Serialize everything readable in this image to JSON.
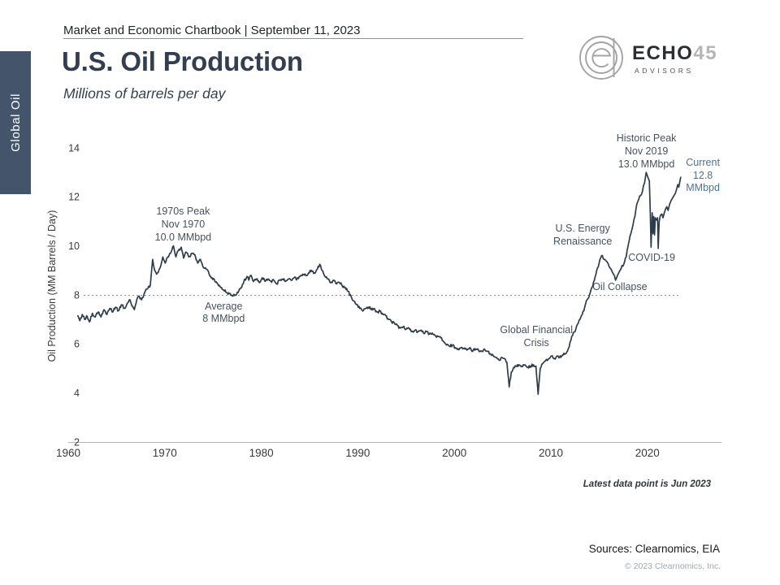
{
  "page": {
    "header": "Market and Economic Chartbook | September 11, 2023",
    "title": "U.S. Oil Production",
    "subtitle": "Millions of barrels per day",
    "sidebar_label": "Global Oil",
    "footnote": "Latest data point is Jun 2023",
    "sources": "Sources: Clearnomics, EIA",
    "copyright": "© 2023 Clearnomics, Inc."
  },
  "logo": {
    "name": "ECHO",
    "number": "45",
    "tagline": "ADVISORS"
  },
  "colors": {
    "accent": "#44546A",
    "line": "#2E3C4C",
    "annotation": "#47525E",
    "current_label": "#4D7394",
    "axis_line": "#B3B3B3",
    "tick_text": "#3A3A3A",
    "dotted_line": "#8694A2"
  },
  "chart_data": {
    "type": "line",
    "title": "U.S. Oil Production",
    "subtitle": "Millions of barrels per day",
    "xlabel": "",
    "ylabel": "Oil Production (MM Barrels / Day)",
    "ylim": [
      2,
      14
    ],
    "xlim": [
      1960,
      2023.6
    ],
    "yticks": [
      2,
      4,
      6,
      8,
      10,
      12,
      14
    ],
    "xticks": [
      1960,
      1970,
      1980,
      1990,
      2000,
      2010,
      2020
    ],
    "grid": false,
    "legend": "none",
    "average_line": {
      "value": 8,
      "from": 1961.6,
      "to": 2023.2
    },
    "noise_amplitude": 0.07,
    "annotations": [
      {
        "id": "1970s-peak",
        "lines": [
          "1970s Peak",
          "Nov 1970",
          "10.0 MMbpd"
        ],
        "year": 1971.9,
        "value": 10.85,
        "style": "default"
      },
      {
        "id": "average",
        "lines": [
          "Average",
          "8 MMbpd"
        ],
        "year": 1976.1,
        "value": 7.25,
        "style": "default"
      },
      {
        "id": "global-financial-crisis",
        "lines": [
          "Global Financial",
          "Crisis"
        ],
        "year": 2008.5,
        "value": 6.27,
        "style": "default"
      },
      {
        "id": "us-energy-renaissance",
        "lines": [
          "U.S. Energy",
          "Renaissance"
        ],
        "year": 2013.3,
        "value": 10.42,
        "style": "default"
      },
      {
        "id": "oil-collapse",
        "lines": [
          "Oil Collapse"
        ],
        "year": 2017.15,
        "value": 8.3,
        "style": "default"
      },
      {
        "id": "covid-19",
        "lines": [
          "COVID-19"
        ],
        "year": 2020.45,
        "value": 9.5,
        "style": "default"
      },
      {
        "id": "historic-peak",
        "lines": [
          "Historic Peak",
          "Nov 2019",
          "13.0 MMbpd"
        ],
        "year": 2019.9,
        "value": 13.82,
        "style": "default"
      },
      {
        "id": "current",
        "lines": [
          "Current",
          "12.8",
          "MMbpd"
        ],
        "year": 2025.75,
        "value": 12.85,
        "style": "accent"
      }
    ],
    "series": [
      {
        "name": "U.S. Oil Production (MM barrels per day)",
        "points": [
          [
            1961.0,
            7.15
          ],
          [
            1961.2,
            6.95
          ],
          [
            1961.45,
            7.2
          ],
          [
            1961.7,
            7.0
          ],
          [
            1961.9,
            7.15
          ],
          [
            1962.2,
            6.9
          ],
          [
            1962.5,
            7.25
          ],
          [
            1962.8,
            7.1
          ],
          [
            1963.1,
            7.3
          ],
          [
            1963.4,
            7.1
          ],
          [
            1963.7,
            7.4
          ],
          [
            1964.0,
            7.2
          ],
          [
            1964.3,
            7.45
          ],
          [
            1964.6,
            7.3
          ],
          [
            1964.9,
            7.5
          ],
          [
            1965.2,
            7.35
          ],
          [
            1965.5,
            7.6
          ],
          [
            1965.8,
            7.45
          ],
          [
            1966.1,
            7.65
          ],
          [
            1966.4,
            7.8
          ],
          [
            1966.6,
            7.55
          ],
          [
            1966.85,
            7.4
          ],
          [
            1967.1,
            7.8
          ],
          [
            1967.35,
            7.95
          ],
          [
            1967.6,
            7.8
          ],
          [
            1967.9,
            8.1
          ],
          [
            1968.2,
            8.25
          ],
          [
            1968.5,
            8.4
          ],
          [
            1968.75,
            9.45
          ],
          [
            1968.95,
            9.0
          ],
          [
            1969.15,
            8.85
          ],
          [
            1969.5,
            9.1
          ],
          [
            1969.8,
            9.55
          ],
          [
            1970.05,
            9.3
          ],
          [
            1970.3,
            9.55
          ],
          [
            1970.6,
            9.7
          ],
          [
            1970.9,
            10.0
          ],
          [
            1971.15,
            9.55
          ],
          [
            1971.4,
            9.8
          ],
          [
            1971.7,
            9.95
          ],
          [
            1971.95,
            9.5
          ],
          [
            1972.2,
            9.75
          ],
          [
            1972.5,
            9.55
          ],
          [
            1972.8,
            9.7
          ],
          [
            1973.1,
            9.65
          ],
          [
            1973.4,
            9.3
          ],
          [
            1973.7,
            9.45
          ],
          [
            1973.95,
            9.15
          ],
          [
            1974.3,
            9.05
          ],
          [
            1974.6,
            8.85
          ],
          [
            1974.9,
            8.7
          ],
          [
            1975.2,
            8.55
          ],
          [
            1975.5,
            8.45
          ],
          [
            1975.8,
            8.3
          ],
          [
            1976.1,
            8.2
          ],
          [
            1976.4,
            8.1
          ],
          [
            1976.7,
            8.05
          ],
          [
            1977.0,
            7.95
          ],
          [
            1977.3,
            8.0
          ],
          [
            1977.6,
            8.1
          ],
          [
            1977.9,
            8.3
          ],
          [
            1978.2,
            8.55
          ],
          [
            1978.5,
            8.75
          ],
          [
            1978.7,
            8.6
          ],
          [
            1978.95,
            8.8
          ],
          [
            1979.2,
            8.55
          ],
          [
            1979.5,
            8.65
          ],
          [
            1979.8,
            8.5
          ],
          [
            1980.1,
            8.7
          ],
          [
            1980.4,
            8.55
          ],
          [
            1980.7,
            8.65
          ],
          [
            1981.0,
            8.55
          ],
          [
            1981.3,
            8.6
          ],
          [
            1981.6,
            8.45
          ],
          [
            1981.9,
            8.6
          ],
          [
            1982.2,
            8.65
          ],
          [
            1982.5,
            8.55
          ],
          [
            1982.8,
            8.65
          ],
          [
            1983.1,
            8.6
          ],
          [
            1983.4,
            8.7
          ],
          [
            1983.7,
            8.65
          ],
          [
            1984.0,
            8.75
          ],
          [
            1984.3,
            8.85
          ],
          [
            1984.6,
            8.8
          ],
          [
            1984.9,
            8.9
          ],
          [
            1985.2,
            9.0
          ],
          [
            1985.5,
            8.9
          ],
          [
            1985.8,
            9.05
          ],
          [
            1986.05,
            9.25
          ],
          [
            1986.3,
            9.0
          ],
          [
            1986.6,
            8.75
          ],
          [
            1986.9,
            8.65
          ],
          [
            1987.2,
            8.5
          ],
          [
            1987.5,
            8.6
          ],
          [
            1987.8,
            8.45
          ],
          [
            1988.1,
            8.5
          ],
          [
            1988.4,
            8.35
          ],
          [
            1988.7,
            8.3
          ],
          [
            1989.0,
            8.15
          ],
          [
            1989.3,
            7.95
          ],
          [
            1989.6,
            7.75
          ],
          [
            1989.9,
            7.6
          ],
          [
            1990.2,
            7.45
          ],
          [
            1990.5,
            7.35
          ],
          [
            1990.8,
            7.45
          ],
          [
            1991.1,
            7.5
          ],
          [
            1991.4,
            7.4
          ],
          [
            1991.7,
            7.45
          ],
          [
            1992.0,
            7.3
          ],
          [
            1992.3,
            7.35
          ],
          [
            1992.6,
            7.2
          ],
          [
            1992.9,
            7.15
          ],
          [
            1993.2,
            7.0
          ],
          [
            1993.5,
            6.9
          ],
          [
            1993.8,
            6.85
          ],
          [
            1994.1,
            6.75
          ],
          [
            1994.4,
            6.65
          ],
          [
            1994.7,
            6.7
          ],
          [
            1995.0,
            6.6
          ],
          [
            1995.3,
            6.65
          ],
          [
            1995.6,
            6.5
          ],
          [
            1995.9,
            6.55
          ],
          [
            1996.2,
            6.5
          ],
          [
            1996.5,
            6.55
          ],
          [
            1996.8,
            6.45
          ],
          [
            1997.1,
            6.5
          ],
          [
            1997.4,
            6.4
          ],
          [
            1997.7,
            6.45
          ],
          [
            1998.0,
            6.35
          ],
          [
            1998.3,
            6.3
          ],
          [
            1998.6,
            6.25
          ],
          [
            1998.9,
            6.1
          ],
          [
            1999.2,
            5.95
          ],
          [
            1999.5,
            5.9
          ],
          [
            1999.8,
            5.95
          ],
          [
            2000.1,
            5.85
          ],
          [
            2000.4,
            5.8
          ],
          [
            2000.7,
            5.85
          ],
          [
            2001.0,
            5.8
          ],
          [
            2001.3,
            5.75
          ],
          [
            2001.6,
            5.85
          ],
          [
            2001.9,
            5.7
          ],
          [
            2002.2,
            5.8
          ],
          [
            2002.5,
            5.75
          ],
          [
            2002.8,
            5.7
          ],
          [
            2003.1,
            5.8
          ],
          [
            2003.4,
            5.7
          ],
          [
            2003.7,
            5.6
          ],
          [
            2004.0,
            5.55
          ],
          [
            2004.3,
            5.45
          ],
          [
            2004.6,
            5.35
          ],
          [
            2004.9,
            5.45
          ],
          [
            2005.2,
            5.4
          ],
          [
            2005.45,
            5.25
          ],
          [
            2005.68,
            4.25
          ],
          [
            2005.9,
            4.85
          ],
          [
            2006.15,
            5.05
          ],
          [
            2006.4,
            5.1
          ],
          [
            2006.7,
            5.15
          ],
          [
            2007.0,
            5.1
          ],
          [
            2007.3,
            5.15
          ],
          [
            2007.6,
            5.05
          ],
          [
            2007.9,
            5.1
          ],
          [
            2008.2,
            5.15
          ],
          [
            2008.45,
            5.1
          ],
          [
            2008.68,
            3.95
          ],
          [
            2008.9,
            5.0
          ],
          [
            2009.15,
            5.2
          ],
          [
            2009.4,
            5.3
          ],
          [
            2009.7,
            5.35
          ],
          [
            2010.0,
            5.5
          ],
          [
            2010.3,
            5.4
          ],
          [
            2010.6,
            5.5
          ],
          [
            2010.9,
            5.45
          ],
          [
            2011.2,
            5.55
          ],
          [
            2011.5,
            5.6
          ],
          [
            2011.8,
            5.8
          ],
          [
            2012.0,
            6.1
          ],
          [
            2012.25,
            6.35
          ],
          [
            2012.5,
            6.5
          ],
          [
            2012.75,
            6.8
          ],
          [
            2013.0,
            7.0
          ],
          [
            2013.25,
            7.2
          ],
          [
            2013.5,
            7.5
          ],
          [
            2013.75,
            7.8
          ],
          [
            2014.0,
            8.0
          ],
          [
            2014.25,
            8.3
          ],
          [
            2014.5,
            8.6
          ],
          [
            2014.75,
            9.0
          ],
          [
            2015.0,
            9.3
          ],
          [
            2015.25,
            9.6
          ],
          [
            2015.5,
            9.45
          ],
          [
            2015.7,
            9.4
          ],
          [
            2015.9,
            9.3
          ],
          [
            2016.1,
            9.1
          ],
          [
            2016.3,
            9.0
          ],
          [
            2016.5,
            8.85
          ],
          [
            2016.7,
            8.6
          ],
          [
            2016.9,
            8.8
          ],
          [
            2017.1,
            8.95
          ],
          [
            2017.3,
            9.1
          ],
          [
            2017.55,
            9.25
          ],
          [
            2017.8,
            9.55
          ],
          [
            2018.0,
            10.0
          ],
          [
            2018.2,
            10.4
          ],
          [
            2018.45,
            10.75
          ],
          [
            2018.7,
            11.2
          ],
          [
            2018.9,
            11.7
          ],
          [
            2019.1,
            11.9
          ],
          [
            2019.3,
            12.05
          ],
          [
            2019.5,
            12.25
          ],
          [
            2019.7,
            12.55
          ],
          [
            2019.87,
            13.0
          ],
          [
            2020.05,
            12.8
          ],
          [
            2020.2,
            12.65
          ],
          [
            2020.3,
            11.3
          ],
          [
            2020.38,
            9.95
          ],
          [
            2020.5,
            11.35
          ],
          [
            2020.58,
            10.5
          ],
          [
            2020.66,
            11.2
          ],
          [
            2020.74,
            10.45
          ],
          [
            2020.82,
            11.15
          ],
          [
            2020.95,
            11.05
          ],
          [
            2021.05,
            11.15
          ],
          [
            2021.12,
            9.9
          ],
          [
            2021.22,
            11.0
          ],
          [
            2021.35,
            11.25
          ],
          [
            2021.5,
            11.3
          ],
          [
            2021.62,
            11.15
          ],
          [
            2021.75,
            11.35
          ],
          [
            2021.88,
            11.5
          ],
          [
            2022.0,
            11.6
          ],
          [
            2022.15,
            11.45
          ],
          [
            2022.3,
            11.7
          ],
          [
            2022.45,
            11.85
          ],
          [
            2022.6,
            11.95
          ],
          [
            2022.75,
            12.05
          ],
          [
            2022.9,
            12.15
          ],
          [
            2023.05,
            12.35
          ],
          [
            2023.15,
            12.5
          ],
          [
            2023.25,
            12.4
          ],
          [
            2023.35,
            12.6
          ],
          [
            2023.45,
            12.8
          ]
        ]
      }
    ]
  }
}
